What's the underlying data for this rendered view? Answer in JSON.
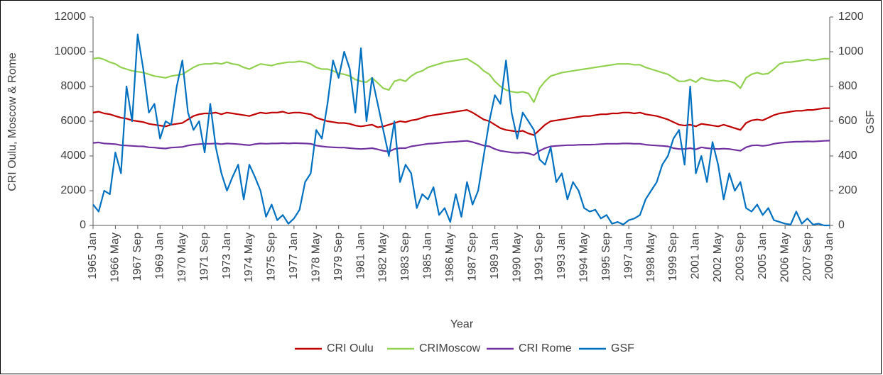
{
  "chart_data": {
    "type": "line",
    "x_label": "Year",
    "y_label": "CRI Oulu, Moscow & Rome",
    "y2_label": "GSF",
    "ylim": [
      0,
      12000
    ],
    "yticks": [
      0,
      2000,
      4000,
      6000,
      8000,
      10000,
      12000
    ],
    "y2lim": [
      0,
      1200
    ],
    "y2ticks": [
      0,
      200,
      400,
      600,
      800,
      1000,
      1200
    ],
    "grid": false,
    "legend": "bottom",
    "categories": [
      "1965 Jan",
      null,
      null,
      null,
      "1966 May",
      null,
      null,
      null,
      "1967 Sep",
      null,
      null,
      null,
      "1969 Jan",
      null,
      null,
      null,
      "1970 May",
      null,
      null,
      null,
      "1971 Sep",
      null,
      null,
      null,
      "1973 Jan",
      null,
      null,
      null,
      "1974 May",
      null,
      null,
      null,
      "1975 Sep",
      null,
      null,
      null,
      "1977 Jan",
      null,
      null,
      null,
      "1978 May",
      null,
      null,
      null,
      "1979 Sep",
      null,
      null,
      null,
      "1981 Jan",
      null,
      null,
      null,
      "1982 May",
      null,
      null,
      null,
      "1983 Sep",
      null,
      null,
      null,
      "1985 Jan",
      null,
      null,
      null,
      "1986 May",
      null,
      null,
      null,
      "1987 Sep",
      null,
      null,
      null,
      "1989 Jan",
      null,
      null,
      null,
      "1990 May",
      null,
      null,
      null,
      "1991 Sep",
      null,
      null,
      null,
      "1993 Jan",
      null,
      null,
      null,
      "1994 May",
      null,
      null,
      null,
      "1995 Sep",
      null,
      null,
      null,
      "1997 Jan",
      null,
      null,
      null,
      "1998 May",
      null,
      null,
      null,
      "1999 Sep",
      null,
      null,
      null,
      "2001 Jan",
      null,
      null,
      null,
      "2002 May",
      null,
      null,
      null,
      "2003 Sep",
      null,
      null,
      null,
      "2005 Jan",
      null,
      null,
      null,
      "2006 May",
      null,
      null,
      null,
      "2007 Sep",
      null,
      null,
      null,
      "2009 Jan"
    ],
    "series": [
      {
        "name": "CRI Oulu",
        "color": "#c00000",
        "values": [
          6500,
          6550,
          6450,
          6400,
          6300,
          6200,
          6150,
          6050,
          6000,
          5950,
          5850,
          5800,
          5750,
          5700,
          5800,
          5850,
          5900,
          6100,
          6300,
          6400,
          6450,
          6450,
          6500,
          6400,
          6500,
          6450,
          6400,
          6350,
          6300,
          6400,
          6500,
          6450,
          6500,
          6500,
          6550,
          6450,
          6500,
          6500,
          6450,
          6400,
          6200,
          6100,
          6000,
          5950,
          5900,
          5900,
          5850,
          5750,
          5700,
          5750,
          5800,
          5650,
          5700,
          5800,
          5900,
          6000,
          5950,
          6050,
          6100,
          6200,
          6300,
          6350,
          6400,
          6450,
          6500,
          6550,
          6600,
          6650,
          6500,
          6300,
          6100,
          6000,
          5800,
          5600,
          5500,
          5450,
          5400,
          5450,
          5300,
          5200,
          5500,
          5800,
          6000,
          6050,
          6100,
          6150,
          6200,
          6250,
          6300,
          6300,
          6350,
          6400,
          6400,
          6450,
          6450,
          6500,
          6500,
          6450,
          6500,
          6400,
          6350,
          6300,
          6200,
          6100,
          5950,
          5800,
          5750,
          5800,
          5700,
          5850,
          5800,
          5750,
          5700,
          5800,
          5700,
          5600,
          5500,
          5900,
          6050,
          6100,
          6050,
          6200,
          6350,
          6450,
          6500,
          6550,
          6600,
          6600,
          6650,
          6650,
          6700,
          6750,
          6750
        ]
      },
      {
        "name": "CRIMoscow",
        "color": "#92d050",
        "values": [
          9600,
          9650,
          9550,
          9400,
          9300,
          9100,
          9000,
          8900,
          8850,
          8800,
          8700,
          8600,
          8550,
          8500,
          8600,
          8650,
          8700,
          8900,
          9100,
          9250,
          9300,
          9300,
          9350,
          9300,
          9400,
          9300,
          9250,
          9100,
          9000,
          9150,
          9300,
          9250,
          9200,
          9300,
          9350,
          9400,
          9400,
          9450,
          9400,
          9300,
          9100,
          9000,
          9000,
          8900,
          8750,
          8700,
          8600,
          8400,
          8300,
          8250,
          8500,
          8200,
          7900,
          7800,
          8300,
          8400,
          8300,
          8600,
          8800,
          8900,
          9100,
          9200,
          9300,
          9400,
          9450,
          9500,
          9550,
          9600,
          9400,
          9200,
          8900,
          8700,
          8300,
          8000,
          7800,
          7700,
          7650,
          7700,
          7600,
          7100,
          7900,
          8300,
          8600,
          8700,
          8800,
          8850,
          8900,
          8950,
          9000,
          9050,
          9100,
          9150,
          9200,
          9250,
          9300,
          9300,
          9300,
          9250,
          9250,
          9100,
          9000,
          8900,
          8800,
          8700,
          8500,
          8300,
          8300,
          8400,
          8250,
          8500,
          8400,
          8350,
          8300,
          8350,
          8300,
          8200,
          7900,
          8500,
          8700,
          8800,
          8700,
          8750,
          9000,
          9300,
          9400,
          9400,
          9450,
          9500,
          9550,
          9500,
          9550,
          9600,
          9600
        ]
      },
      {
        "name": "CRI Rome",
        "color": "#7030a0",
        "values": [
          4750,
          4780,
          4720,
          4700,
          4680,
          4620,
          4600,
          4580,
          4560,
          4550,
          4500,
          4480,
          4450,
          4430,
          4480,
          4500,
          4520,
          4600,
          4650,
          4680,
          4700,
          4700,
          4720,
          4680,
          4720,
          4700,
          4680,
          4650,
          4620,
          4680,
          4720,
          4700,
          4720,
          4720,
          4740,
          4720,
          4740,
          4730,
          4720,
          4700,
          4600,
          4550,
          4520,
          4500,
          4480,
          4480,
          4450,
          4420,
          4400,
          4420,
          4450,
          4380,
          4300,
          4250,
          4400,
          4450,
          4450,
          4550,
          4600,
          4650,
          4700,
          4720,
          4750,
          4780,
          4800,
          4820,
          4850,
          4870,
          4800,
          4700,
          4600,
          4550,
          4400,
          4300,
          4250,
          4200,
          4180,
          4200,
          4150,
          4050,
          4300,
          4450,
          4550,
          4580,
          4600,
          4620,
          4620,
          4640,
          4650,
          4650,
          4660,
          4680,
          4700,
          4700,
          4700,
          4720,
          4720,
          4700,
          4700,
          4650,
          4620,
          4600,
          4580,
          4550,
          4450,
          4400,
          4400,
          4450,
          4380,
          4500,
          4450,
          4420,
          4400,
          4420,
          4400,
          4350,
          4300,
          4500,
          4600,
          4620,
          4580,
          4620,
          4700,
          4750,
          4780,
          4800,
          4820,
          4820,
          4840,
          4830,
          4850,
          4870,
          4880
        ]
      },
      {
        "name": "GSF",
        "color": "#0070c0",
        "axis": "y2",
        "values": [
          120,
          80,
          200,
          180,
          420,
          300,
          800,
          600,
          1100,
          900,
          650,
          700,
          500,
          600,
          580,
          800,
          950,
          650,
          550,
          600,
          420,
          700,
          450,
          300,
          200,
          280,
          350,
          150,
          350,
          280,
          200,
          50,
          120,
          30,
          60,
          10,
          40,
          90,
          250,
          300,
          550,
          500,
          700,
          950,
          850,
          1000,
          900,
          650,
          1020,
          600,
          850,
          700,
          550,
          400,
          600,
          250,
          350,
          300,
          100,
          180,
          150,
          220,
          60,
          100,
          20,
          180,
          50,
          250,
          120,
          200,
          400,
          600,
          750,
          700,
          950,
          650,
          500,
          650,
          600,
          550,
          380,
          350,
          450,
          250,
          300,
          150,
          250,
          200,
          100,
          80,
          90,
          40,
          60,
          10,
          20,
          5,
          30,
          40,
          60,
          150,
          200,
          250,
          350,
          400,
          500,
          550,
          350,
          800,
          300,
          400,
          250,
          480,
          350,
          150,
          300,
          200,
          250,
          100,
          80,
          120,
          60,
          100,
          30,
          20,
          10,
          5,
          80,
          10,
          40,
          5,
          10,
          0,
          0
        ]
      }
    ]
  }
}
